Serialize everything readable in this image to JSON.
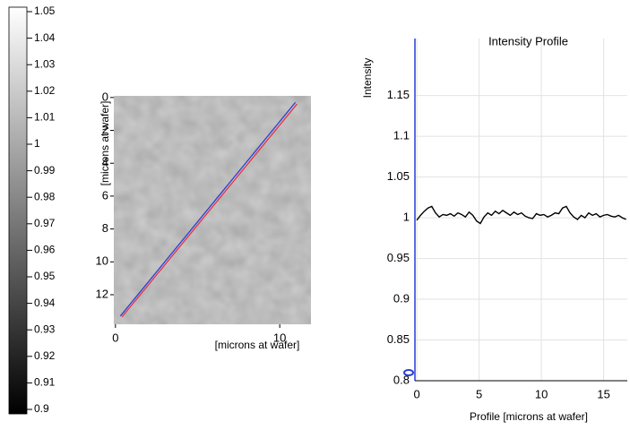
{
  "chart_data": [
    {
      "type": "colorbar",
      "ylim": [
        0.9,
        1.05
      ],
      "yticks": [
        1.05,
        1.04,
        1.03,
        1.02,
        1.01,
        1,
        0.99,
        0.98,
        0.97,
        0.96,
        0.95,
        0.94,
        0.93,
        0.92,
        0.91,
        0.9
      ]
    },
    {
      "type": "image",
      "xlabel": "[microns at wafer]",
      "ylabel": "[microns at wafer]",
      "xlim": [
        -0.1,
        11.9
      ],
      "ylim": [
        13.8,
        -0.1
      ],
      "xticks": [
        0,
        10
      ],
      "yticks": [
        0,
        2,
        4,
        6,
        8,
        10,
        12
      ],
      "lines": [
        {
          "color": "#e8304a",
          "x": [
            0.4,
            11.05
          ],
          "values": [
            13.35,
            0.4
          ]
        },
        {
          "color": "#2a3fd6",
          "x": [
            0.3,
            10.95
          ],
          "values": [
            13.3,
            0.3
          ]
        }
      ]
    },
    {
      "type": "line",
      "title": "Intensity Profile",
      "xlabel": "Profile  [microns at wafer]",
      "ylabel": "Intensity",
      "xlim": [
        -0.15,
        16.9
      ],
      "ylim": [
        0.8,
        1.22
      ],
      "xticks": [
        0,
        5,
        10,
        15
      ],
      "yticks": [
        0.8,
        0.85,
        0.9,
        0.95,
        1,
        1.05,
        1.1,
        1.15
      ],
      "grid": true,
      "series": [
        {
          "color": "#000000",
          "x": [
            0,
            0.3,
            0.6,
            0.9,
            1.2,
            1.5,
            1.8,
            2.1,
            2.4,
            2.7,
            3,
            3.3,
            3.6,
            3.9,
            4.2,
            4.5,
            4.8,
            5.1,
            5.4,
            5.7,
            6,
            6.3,
            6.6,
            6.9,
            7.2,
            7.5,
            7.8,
            8.1,
            8.4,
            8.7,
            9,
            9.3,
            9.6,
            9.9,
            10.2,
            10.5,
            10.8,
            11.1,
            11.4,
            11.7,
            12,
            12.3,
            12.6,
            12.9,
            13.2,
            13.5,
            13.8,
            14.1,
            14.4,
            14.7,
            15,
            15.3,
            15.6,
            15.9,
            16.2,
            16.5,
            16.8
          ],
          "values": [
            0.997,
            1.003,
            1.008,
            1.012,
            1.014,
            1.006,
            1.001,
            1.004,
            1.003,
            1.005,
            1.002,
            1.006,
            1.004,
            1.001,
            1.007,
            1.003,
            0.996,
            0.993,
            1.001,
            1.006,
            1.003,
            1.008,
            1.005,
            1.009,
            1.006,
            1.003,
            1.007,
            1.004,
            1.006,
            1.002,
            1.0,
            0.999,
            1.005,
            1.003,
            1.004,
            1.001,
            1.003,
            1.006,
            1.005,
            1.012,
            1.014,
            1.006,
            1.001,
            0.998,
            1.003,
            1.0,
            1.006,
            1.003,
            1.005,
            1.001,
            1.003,
            1.004,
            1.002,
            1.001,
            1.003,
            1.0,
            0.998
          ]
        }
      ]
    }
  ]
}
